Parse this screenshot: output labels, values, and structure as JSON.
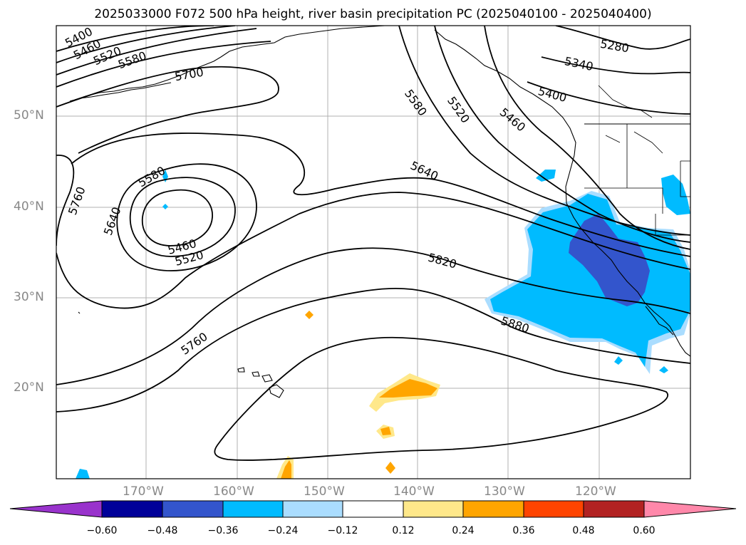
{
  "title": "2025033000 F072 500 hPa height, river basin precipitation PC (2025040100 - 2025040400)",
  "map": {
    "lat_labels": [
      "50°N",
      "40°N",
      "30°N",
      "20°N"
    ],
    "lon_labels": [
      "170°W",
      "160°W",
      "150°W",
      "140°W",
      "130°W",
      "120°W"
    ],
    "contour_labels": [
      "5400",
      "5460",
      "5520",
      "5580",
      "5700",
      "5580",
      "5520",
      "5460",
      "5640",
      "5760",
      "5640",
      "5580",
      "5460",
      "5520",
      "5820",
      "5760",
      "5880",
      "5280",
      "5340",
      "5400"
    ],
    "colors": {
      "coast": "#000000",
      "grid": "#b0b0b0",
      "contour": "#000000"
    }
  },
  "colorbar": {
    "ticks": [
      "−0.60",
      "−0.48",
      "−0.36",
      "−0.24",
      "−0.12",
      "0.12",
      "0.24",
      "0.36",
      "0.48",
      "0.60"
    ],
    "colors": [
      "#9933cc",
      "#000099",
      "#3355cc",
      "#00bbff",
      "#aaddff",
      "#ffffff",
      "#ffe88a",
      "#ffa500",
      "#ff4400",
      "#b22222",
      "#ff88aa"
    ]
  }
}
